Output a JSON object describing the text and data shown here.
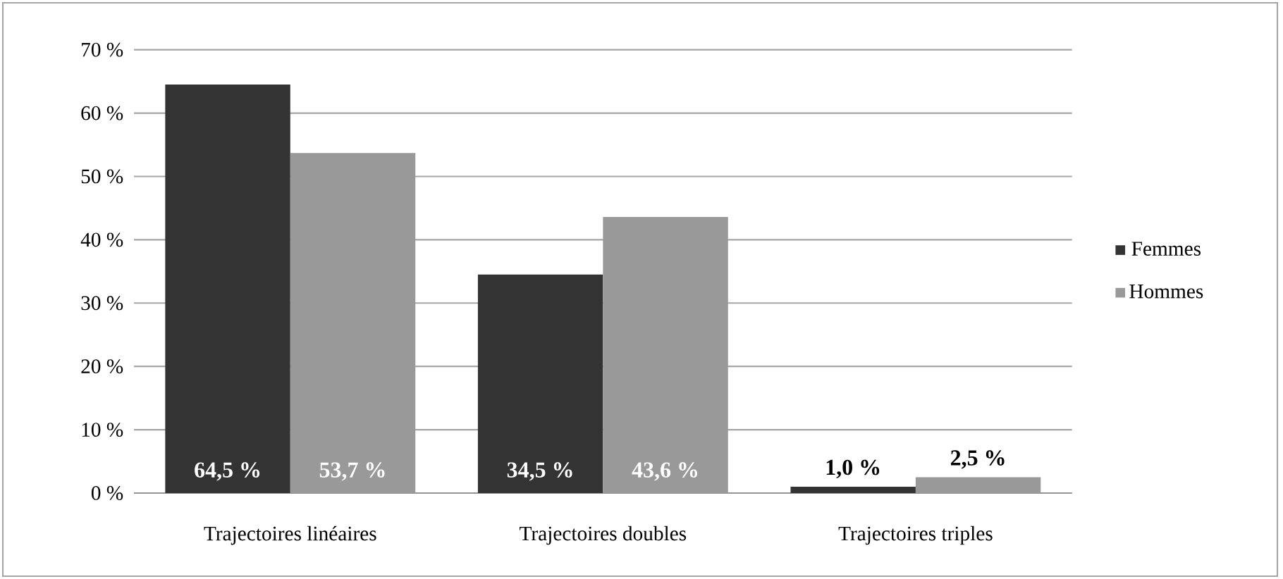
{
  "chart_data": {
    "type": "bar",
    "categories": [
      "Trajectoires linéaires",
      "Trajectoires doubles",
      "Trajectoires triples"
    ],
    "series": [
      {
        "name": "Femmes",
        "color": "#333333",
        "values": [
          64.5,
          34.5,
          1.0
        ],
        "value_labels": [
          "64,5 %",
          "34,5 %",
          "1,0 %"
        ]
      },
      {
        "name": "Hommes",
        "color": "#999999",
        "values": [
          53.7,
          43.6,
          2.5
        ],
        "value_labels": [
          "53,7 %",
          "43,6 %",
          "2,5 %"
        ]
      }
    ],
    "ylim": [
      0,
      70
    ],
    "yticks": [
      {
        "value": 0,
        "label": "0 %"
      },
      {
        "value": 10,
        "label": "10 %"
      },
      {
        "value": 20,
        "label": "20 %"
      },
      {
        "value": 30,
        "label": "30 %"
      },
      {
        "value": 40,
        "label": "40 %"
      },
      {
        "value": 50,
        "label": "50 %"
      },
      {
        "value": 60,
        "label": "60 %"
      },
      {
        "value": 70,
        "label": "70 %"
      }
    ],
    "grid": "y",
    "legend": "right"
  }
}
